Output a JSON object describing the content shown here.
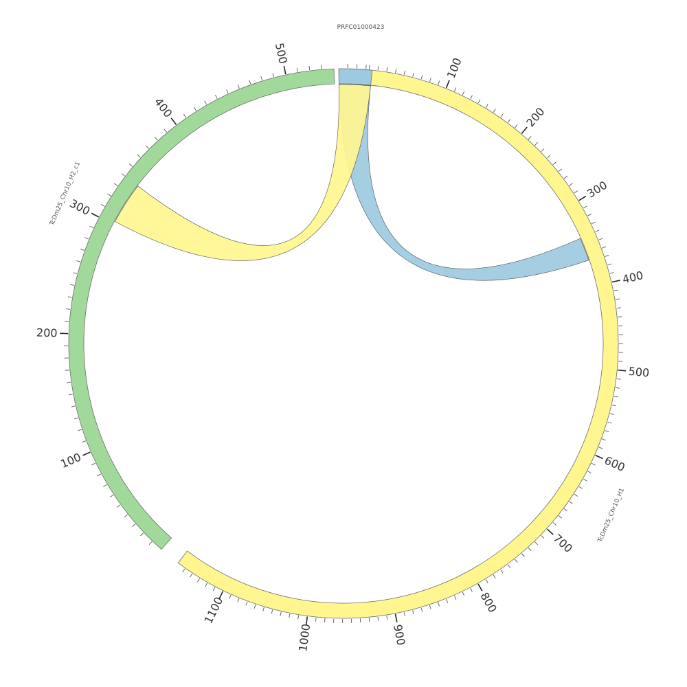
{
  "chart_data": {
    "type": "chord",
    "segments": [
      {
        "name": "TcDm25_Chr10_H1",
        "length": 1160,
        "color": "#fff68f",
        "tick_labels": [
          "100",
          "200",
          "300",
          "400",
          "500",
          "600",
          "700",
          "800",
          "900",
          "1000",
          "1100"
        ]
      },
      {
        "name": "TcDm25_Chr10_H2_c1",
        "length": 540,
        "color": "#a1d99b",
        "tick_labels": [
          "100",
          "200",
          "300",
          "400",
          "500"
        ]
      },
      {
        "name": "PRFC01000423",
        "length": 37,
        "color": "#9ecae1",
        "tick_labels": []
      }
    ],
    "links": [
      {
        "from": {
          "segment": "PRFC01000423",
          "start": 0,
          "end": 37
        },
        "to": {
          "segment": "TcDm25_Chr10_H1",
          "start": 340,
          "end": 368
        },
        "color": "#9ecae1"
      },
      {
        "from": {
          "segment": "PRFC01000423",
          "start": 0,
          "end": 37
        },
        "to": {
          "segment": "TcDm25_Chr10_H2_c1",
          "start": 303,
          "end": 340
        },
        "color": "#fff68f"
      }
    ],
    "tick_interval": 10,
    "label_interval": 100
  }
}
